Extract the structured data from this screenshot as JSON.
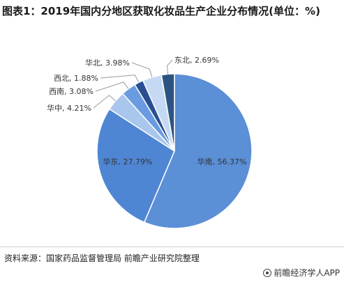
{
  "title": "图表1：2019年国内分地区获取化妆品生产企业分布情况(单位：%)",
  "source": "资料来源：国家药品监督管理局 前瞻产业研究院整理",
  "brand": "@前瞻经济学人APP",
  "chart_data": {
    "type": "pie",
    "title": "图表1：2019年国内分地区获取化妆品生产企业分布情况(单位：%)",
    "unit": "%",
    "slices": [
      {
        "name": "华南",
        "value": 56.37,
        "label": "华南, 56.37%",
        "color": "#5b8fd6"
      },
      {
        "name": "华东",
        "value": 27.79,
        "label": "华东, 27.79%",
        "color": "#4f86d4"
      },
      {
        "name": "华中",
        "value": 4.21,
        "label": "华中, 4.21%",
        "color": "#a9c6ec"
      },
      {
        "name": "西南",
        "value": 3.08,
        "label": "西南, 3.08%",
        "color": "#6a9be0"
      },
      {
        "name": "西北",
        "value": 1.88,
        "label": "西北, 1.88%",
        "color": "#2a4f92"
      },
      {
        "name": "华北",
        "value": 3.98,
        "label": "华北, 3.98%",
        "color": "#c5d9f2"
      },
      {
        "name": "东北",
        "value": 2.69,
        "label": "东北, 2.69%",
        "color": "#2c5483"
      }
    ]
  }
}
